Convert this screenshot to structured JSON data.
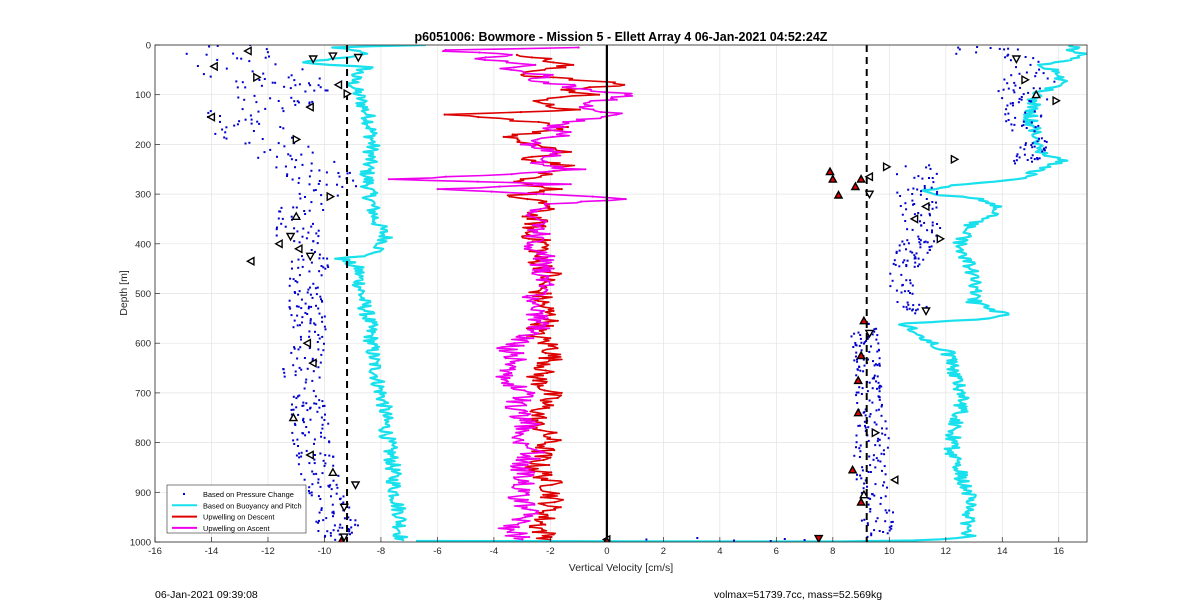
{
  "footer": {
    "timestamp": "06-Jan-2021 09:39:08",
    "volmax_mass": "volmax=51739.7cc, mass=52.569kg"
  },
  "chart_data": {
    "type": "scatter",
    "title": "p6051006: Bowmore - Mission 5 - Ellett Array 4 06-Jan-2021 04:52:24Z",
    "xlabel": "Vertical Velocity [cm/s]",
    "ylabel": "Depth [m]",
    "xlim": [
      -16,
      17
    ],
    "ylim": [
      0,
      1000
    ],
    "y_reversed": true,
    "grid": true,
    "x_ticks": [
      -16,
      -14,
      -12,
      -10,
      -8,
      -6,
      -4,
      -2,
      0,
      2,
      4,
      6,
      8,
      10,
      12,
      14,
      16
    ],
    "y_ticks": [
      0,
      100,
      200,
      300,
      400,
      500,
      600,
      700,
      800,
      900,
      1000
    ],
    "legend_position": "bottom-left",
    "legend": [
      {
        "label": "Based on Pressure Change",
        "color": "#0000cc",
        "style": "dots"
      },
      {
        "label": "Based on Buoyancy and Pitch",
        "color": "#18e0ec",
        "style": "line"
      },
      {
        "label": "Upwelling on Descent",
        "color": "#dd0000",
        "style": "line"
      },
      {
        "label": "Upwelling on Ascent",
        "color": "#ee00ee",
        "style": "line"
      }
    ],
    "reference_lines": [
      {
        "x": -9.2,
        "style": "dashed",
        "color": "#000000"
      },
      {
        "x": 9.2,
        "style": "dashed",
        "color": "#000000"
      },
      {
        "x": 0,
        "style": "solid",
        "color": "#000000"
      }
    ],
    "series": [
      {
        "name": "Based on Pressure Change",
        "kind": "dots",
        "color": "#0000cc",
        "groups": [
          {
            "depth": [
              0,
              30,
              60,
              100,
              150,
              200,
              250,
              290,
              330,
              380,
              430,
              480,
              540,
              600,
              660,
              720,
              780,
              840,
              900,
              960,
              1000
            ],
            "x": [
              -12.5,
              -13.8,
              -12.2,
              -11.0,
              -13.5,
              -12.0,
              -10.5,
              -9.8,
              -10.7,
              -11.0,
              -10.5,
              -10.8,
              -10.6,
              -10.4,
              -10.9,
              -10.6,
              -10.5,
              -10.3,
              -10.0,
              -9.6,
              -9.4
            ],
            "spread": [
              1.6,
              2.2,
              2.0,
              1.8,
              1.6,
              1.4,
              1.4,
              1.1,
              0.9,
              0.8,
              0.8,
              0.6,
              0.6,
              0.6,
              0.7,
              0.6,
              0.7,
              0.7,
              0.7,
              0.8,
              0.6
            ]
          },
          {
            "depth": [
              0,
              40,
              80,
              120,
              160,
              200,
              240
            ],
            "x": [
              13.0,
              14.2,
              14.8,
              14.6,
              14.9,
              15.1,
              14.8
            ],
            "spread": [
              1.6,
              1.5,
              1.2,
              0.9,
              0.7,
              0.6,
              0.4
            ]
          },
          {
            "depth": [
              240,
              280,
              320,
              380,
              440,
              500,
              540
            ],
            "x": [
              11.6,
              10.8,
              11.0,
              11.2,
              10.6,
              10.4,
              11.2
            ],
            "spread": [
              1.2,
              0.9,
              0.7,
              0.7,
              0.5,
              0.5,
              0.4
            ]
          },
          {
            "depth": [
              560,
              620,
              680,
              740,
              800,
              860,
              920,
              980,
              1000
            ],
            "x": [
              9.1,
              9.2,
              9.2,
              9.4,
              9.4,
              9.3,
              9.5,
              9.6,
              9.4
            ],
            "spread": [
              0.5,
              0.5,
              0.5,
              0.5,
              0.6,
              0.6,
              0.6,
              0.6,
              0.3
            ]
          },
          {
            "depth": [
              992,
              995,
              997,
              998,
              996,
              994
            ],
            "x": [
              3.2,
              1.4,
              4.5,
              5.8,
              7.0,
              6.3
            ],
            "spread": [
              0.0,
              0.0,
              0.0,
              0.0,
              0.0,
              0.0
            ]
          }
        ]
      },
      {
        "name": "Based on Buoyancy and Pitch",
        "kind": "line",
        "color": "#18e0ec",
        "segments": [
          {
            "depth": [
              0,
              5,
              15,
              25,
              35,
              45,
              60,
              80,
              100,
              150,
              200,
              260,
              300,
              350,
              390,
              420,
              430,
              450,
              500,
              560,
              620,
              680,
              720,
              780,
              840,
              900,
              950,
              990,
              998
            ],
            "x": [
              -6.5,
              -9.8,
              -8.5,
              -9.3,
              -10.8,
              -8.5,
              -8.9,
              -9.0,
              -8.8,
              -8.4,
              -8.3,
              -8.5,
              -8.4,
              -8.2,
              -7.8,
              -8.2,
              -9.4,
              -8.8,
              -8.7,
              -8.4,
              -8.3,
              -8.1,
              -7.9,
              -7.8,
              -7.6,
              -7.5,
              -7.3,
              -7.3,
              -7.2
            ]
          },
          {
            "depth": [
              998,
              999,
              997,
              990,
              950,
              900,
              860,
              820,
              780,
              740,
              700,
              660,
              620,
              590,
              560,
              550,
              540,
              520,
              480,
              440,
              400,
              360,
              330,
              310,
              300,
              290,
              280,
              270,
              250,
              230,
              220,
              200,
              150,
              100,
              80,
              60,
              40,
              20,
              10,
              0
            ],
            "x": [
              -7.0,
              8.5,
              11.0,
              12.8,
              12.8,
              12.8,
              12.5,
              12.2,
              12.3,
              12.5,
              12.6,
              12.3,
              12.1,
              11.2,
              10.5,
              13.8,
              14.0,
              13.0,
              13.0,
              12.8,
              12.5,
              12.9,
              14.0,
              13.2,
              11.5,
              11.4,
              12.5,
              14.5,
              15.5,
              16.2,
              15.5,
              15.3,
              15.0,
              15.2,
              16.0,
              16.2,
              15.5,
              17.0,
              16.5,
              16.5
            ]
          }
        ]
      },
      {
        "name": "Upwelling on Descent",
        "kind": "line",
        "color": "#dd0000",
        "segments": [
          {
            "depth": [
              20,
              40,
              60,
              80,
              90,
              100,
              115,
              130,
              140,
              155,
              170,
              185,
              200,
              215,
              230,
              245,
              260,
              275,
              290,
              305,
              320,
              340,
              360,
              380,
              400,
              430,
              460,
              490,
              520,
              550,
              580,
              610,
              640,
              670,
              700,
              730,
              760,
              790,
              820,
              850,
              880,
              910,
              940,
              970,
              995
            ],
            "x": [
              -2.8,
              -1.5,
              -3.0,
              0.8,
              -1.5,
              -0.6,
              -2.8,
              -1.2,
              -5.5,
              -2.5,
              -1.4,
              -3.8,
              -2.2,
              -1.5,
              -2.8,
              -1.2,
              -2.4,
              -3.5,
              -1.7,
              -3.5,
              -2.0,
              -2.6,
              -2.5,
              -2.8,
              -2.2,
              -2.5,
              -2.0,
              -2.4,
              -2.3,
              -2.0,
              -2.6,
              -1.9,
              -2.0,
              -2.5,
              -2.0,
              -2.3,
              -2.6,
              -2.0,
              -2.3,
              -2.5,
              -2.0,
              -1.9,
              -2.1,
              -2.4,
              -2.0
            ]
          }
        ]
      },
      {
        "name": "Upwelling on Ascent",
        "kind": "line",
        "color": "#ee00ee",
        "segments": [
          {
            "depth": [
              995,
              970,
              940,
              910,
              880,
              850,
              820,
              790,
              760,
              730,
              700,
              670,
              640,
              610,
              580,
              550,
              520,
              490,
              460,
              430,
              400,
              370,
              340,
              320,
              310,
              300,
              290,
              280,
              270,
              260,
              250,
              240,
              220,
              200,
              180,
              160,
              140,
              120,
              100,
              90,
              80,
              70,
              60,
              50,
              40,
              30,
              20,
              10,
              5
            ],
            "x": [
              -3.0,
              -3.5,
              -2.6,
              -3.2,
              -2.8,
              -3.0,
              -2.6,
              -3.0,
              -2.8,
              -3.3,
              -3.0,
              -3.6,
              -3.2,
              -3.5,
              -2.6,
              -2.3,
              -2.8,
              -2.2,
              -2.4,
              -2.2,
              -2.6,
              -2.4,
              -2.8,
              -2.0,
              0.4,
              -1.8,
              -5.8,
              -1.5,
              -7.6,
              -3.4,
              -1.2,
              -2.4,
              -1.8,
              -2.8,
              -1.5,
              -2.0,
              0.5,
              -1.0,
              1.0,
              -0.8,
              -1.5,
              -2.8,
              -2.0,
              -3.8,
              -2.2,
              -4.5,
              -3.5,
              -6.0,
              -1.0
            ]
          }
        ]
      }
    ],
    "marker_triangles": {
      "fill": "#ffffff",
      "stroke": "#000000",
      "points": [
        {
          "x": -12.7,
          "depth": 12,
          "dir": "left"
        },
        {
          "x": -13.9,
          "depth": 43,
          "dir": "left"
        },
        {
          "x": -12.4,
          "depth": 65,
          "dir": "right"
        },
        {
          "x": -10.4,
          "depth": 28,
          "dir": "down"
        },
        {
          "x": -9.7,
          "depth": 22,
          "dir": "down"
        },
        {
          "x": -8.8,
          "depth": 25,
          "dir": "down"
        },
        {
          "x": -9.5,
          "depth": 80,
          "dir": "left"
        },
        {
          "x": -9.2,
          "depth": 98,
          "dir": "right"
        },
        {
          "x": -10.5,
          "depth": 125,
          "dir": "left"
        },
        {
          "x": -14.0,
          "depth": 145,
          "dir": "left"
        },
        {
          "x": -11.0,
          "depth": 190,
          "dir": "right"
        },
        {
          "x": -9.8,
          "depth": 305,
          "dir": "right"
        },
        {
          "x": -11.0,
          "depth": 345,
          "dir": "up"
        },
        {
          "x": -11.2,
          "depth": 385,
          "dir": "down"
        },
        {
          "x": -11.6,
          "depth": 400,
          "dir": "left"
        },
        {
          "x": -10.9,
          "depth": 410,
          "dir": "left"
        },
        {
          "x": -10.5,
          "depth": 425,
          "dir": "down"
        },
        {
          "x": -12.6,
          "depth": 435,
          "dir": "left"
        },
        {
          "x": -10.6,
          "depth": 600,
          "dir": "left"
        },
        {
          "x": -10.4,
          "depth": 640,
          "dir": "left"
        },
        {
          "x": -11.1,
          "depth": 750,
          "dir": "up"
        },
        {
          "x": -10.5,
          "depth": 825,
          "dir": "left"
        },
        {
          "x": -9.7,
          "depth": 860,
          "dir": "up"
        },
        {
          "x": -8.9,
          "depth": 885,
          "dir": "down"
        },
        {
          "x": -9.3,
          "depth": 930,
          "dir": "down"
        },
        {
          "x": -9.3,
          "depth": 990,
          "dir": "down"
        },
        {
          "x": 14.5,
          "depth": 28,
          "dir": "down"
        },
        {
          "x": 14.8,
          "depth": 70,
          "dir": "right"
        },
        {
          "x": 15.2,
          "depth": 100,
          "dir": "up"
        },
        {
          "x": 15.9,
          "depth": 112,
          "dir": "right"
        },
        {
          "x": 12.3,
          "depth": 230,
          "dir": "right"
        },
        {
          "x": 11.3,
          "depth": 325,
          "dir": "left"
        },
        {
          "x": 10.9,
          "depth": 350,
          "dir": "left"
        },
        {
          "x": 11.8,
          "depth": 390,
          "dir": "right"
        },
        {
          "x": 11.3,
          "depth": 535,
          "dir": "down"
        },
        {
          "x": 9.9,
          "depth": 245,
          "dir": "right"
        },
        {
          "x": 9.3,
          "depth": 265,
          "dir": "left"
        },
        {
          "x": 9.3,
          "depth": 300,
          "dir": "down"
        },
        {
          "x": 9.3,
          "depth": 580,
          "dir": "down"
        },
        {
          "x": 9.5,
          "depth": 780,
          "dir": "right"
        },
        {
          "x": 10.2,
          "depth": 875,
          "dir": "left"
        },
        {
          "x": 9.1,
          "depth": 905,
          "dir": "up"
        },
        {
          "x": 0.0,
          "depth": 995,
          "dir": "left"
        }
      ]
    },
    "marker_triangles_red": {
      "fill": "#dd0000",
      "stroke": "#000000",
      "points": [
        {
          "x": 7.9,
          "depth": 255,
          "dir": "up"
        },
        {
          "x": 8.0,
          "depth": 270,
          "dir": "up"
        },
        {
          "x": 8.8,
          "depth": 285,
          "dir": "up"
        },
        {
          "x": 8.2,
          "depth": 302,
          "dir": "up"
        },
        {
          "x": 9.0,
          "depth": 270,
          "dir": "up"
        },
        {
          "x": 9.1,
          "depth": 555,
          "dir": "up"
        },
        {
          "x": 9.0,
          "depth": 625,
          "dir": "up"
        },
        {
          "x": 8.9,
          "depth": 675,
          "dir": "up"
        },
        {
          "x": 8.9,
          "depth": 740,
          "dir": "up"
        },
        {
          "x": 8.7,
          "depth": 855,
          "dir": "up"
        },
        {
          "x": 9.0,
          "depth": 920,
          "dir": "up"
        },
        {
          "x": 7.5,
          "depth": 993,
          "dir": "down"
        },
        {
          "x": -9.4,
          "depth": 998,
          "dir": "up"
        },
        {
          "x": 0.0,
          "depth": 998,
          "dir": "up"
        }
      ]
    }
  }
}
